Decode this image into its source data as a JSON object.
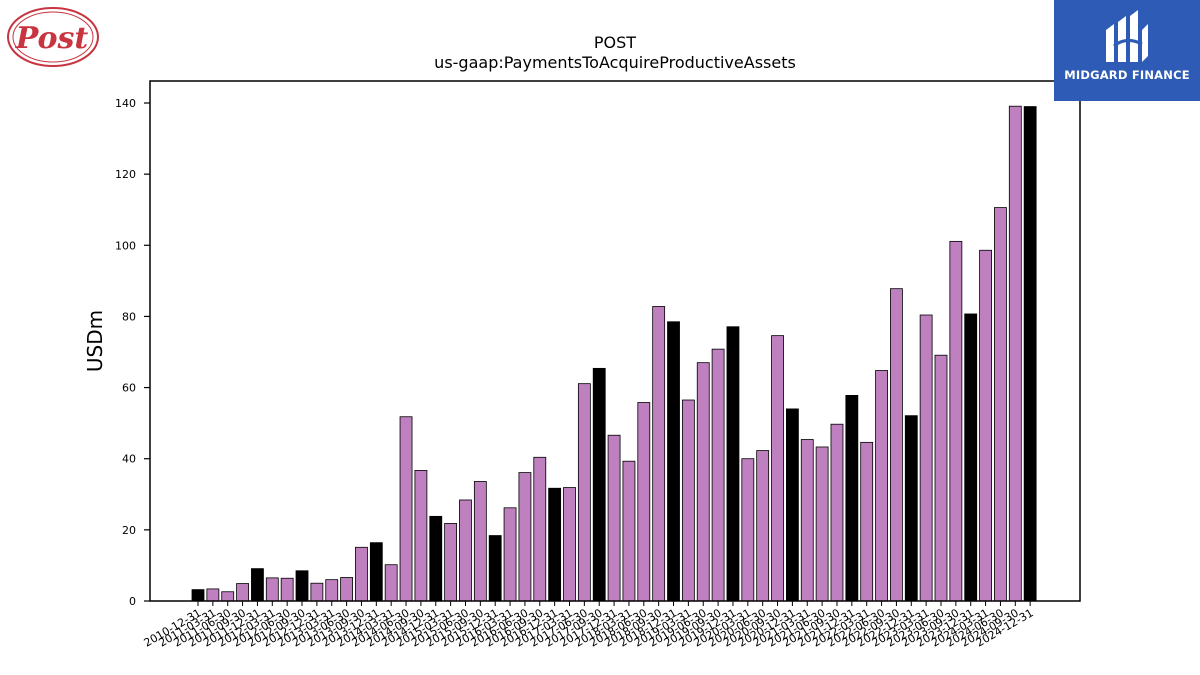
{
  "logos": {
    "left_text": "Post",
    "right_text": "MIDGARD FINANCE"
  },
  "chart_data": {
    "type": "bar",
    "title": "POST",
    "subtitle": "us-gaap:PaymentsToAcquireProductiveAssets",
    "ylabel": "USDm",
    "xlabel": "",
    "ylim": [
      0,
      146
    ],
    "yticks": [
      0,
      20,
      40,
      60,
      80,
      100,
      120,
      140
    ],
    "grid": false,
    "colors": {
      "quarter": "#bf80bf",
      "annual": "#000000",
      "edge": "#000000"
    },
    "categories": [
      "2010-12-31",
      "2011-03-31",
      "2011-06-30",
      "2011-09-30",
      "2011-12-31",
      "2012-03-31",
      "2012-06-30",
      "2012-09-30",
      "2012-12-31",
      "2013-03-31",
      "2013-06-30",
      "2013-09-30",
      "2013-12-31",
      "2014-03-31",
      "2014-06-30",
      "2014-09-30",
      "2014-12-31",
      "2015-03-31",
      "2015-06-30",
      "2015-09-30",
      "2015-12-31",
      "2016-03-31",
      "2016-06-30",
      "2016-09-30",
      "2016-12-31",
      "2017-03-31",
      "2017-06-30",
      "2017-09-30",
      "2017-12-31",
      "2018-03-31",
      "2018-06-30",
      "2018-09-30",
      "2018-12-31",
      "2019-03-31",
      "2019-06-30",
      "2019-09-30",
      "2019-12-31",
      "2020-03-31",
      "2020-06-30",
      "2020-09-30",
      "2020-12-31",
      "2021-03-31",
      "2021-06-30",
      "2021-09-30",
      "2021-12-31",
      "2022-03-31",
      "2022-06-30",
      "2022-09-30",
      "2022-12-31",
      "2023-03-31",
      "2023-06-30",
      "2023-09-30",
      "2023-12-31",
      "2024-03-31",
      "2024-06-30",
      "2024-09-30",
      "2024-12-31"
    ],
    "values": [
      3.2,
      3.4,
      2.6,
      4.9,
      9.1,
      6.5,
      6.4,
      8.5,
      5.0,
      6.0,
      6.6,
      15.1,
      16.4,
      10.2,
      51.8,
      36.7,
      23.8,
      21.8,
      28.4,
      33.6,
      18.4,
      26.2,
      36.1,
      40.4,
      31.7,
      31.9,
      61.1,
      65.4,
      46.6,
      39.3,
      55.8,
      82.8,
      78.5,
      56.5,
      67.0,
      70.8,
      77.1,
      40.0,
      42.3,
      74.6,
      54.0,
      45.4,
      43.3,
      49.7,
      57.8,
      44.6,
      64.8,
      87.8,
      52.1,
      80.4,
      69.1,
      101.1,
      80.7,
      98.6,
      110.6,
      139.1,
      139.0
    ],
    "annual": [
      true,
      false,
      false,
      false,
      true,
      false,
      false,
      true,
      false,
      false,
      false,
      false,
      true,
      false,
      false,
      false,
      true,
      false,
      false,
      false,
      true,
      false,
      false,
      false,
      true,
      false,
      false,
      true,
      false,
      false,
      false,
      false,
      true,
      false,
      false,
      false,
      true,
      false,
      false,
      false,
      true,
      false,
      false,
      false,
      true,
      false,
      false,
      false,
      true,
      false,
      false,
      false,
      true,
      false,
      false,
      false,
      true
    ]
  }
}
